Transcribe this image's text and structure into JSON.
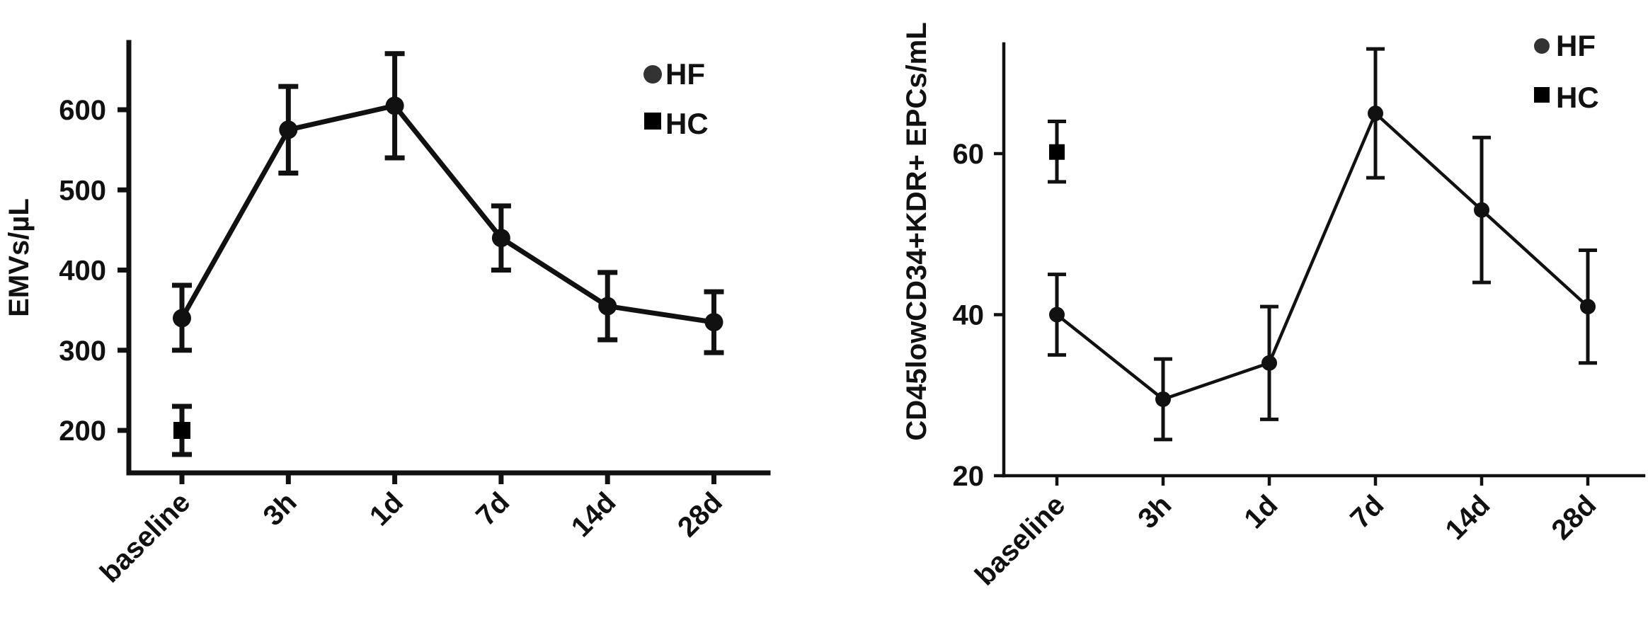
{
  "chart_data": [
    {
      "type": "line",
      "ylabel": "EMVs/µL",
      "xlabel": "",
      "categories": [
        "baseline",
        "3h",
        "1d",
        "7d",
        "14d",
        "28d"
      ],
      "ylim": [
        120,
        700
      ],
      "yticks": [
        200,
        300,
        400,
        500,
        600
      ],
      "yticklabels": [
        "200",
        "300",
        "400",
        "500",
        "600"
      ],
      "legend_position": "top-right",
      "series": [
        {
          "name": "HF",
          "marker": "circle",
          "connected": true,
          "values": [
            340,
            575,
            605,
            440,
            355,
            335
          ],
          "err_low": [
            300,
            521,
            540,
            400,
            313,
            297
          ],
          "err_high": [
            381,
            629,
            670,
            480,
            397,
            373
          ]
        },
        {
          "name": "HC",
          "marker": "square",
          "connected": false,
          "values": [
            200,
            null,
            null,
            null,
            null,
            null
          ],
          "err_low": [
            170,
            null,
            null,
            null,
            null,
            null
          ],
          "err_high": [
            230,
            null,
            null,
            null,
            null,
            null
          ]
        }
      ],
      "colors": {
        "line": "#111111",
        "hf_marker": "#111111",
        "hc_marker": "#000000"
      }
    },
    {
      "type": "line",
      "ylabel": "CD45lowCD34+KDR+ EPCs/mL",
      "xlabel": "",
      "categories": [
        "baseline",
        "3h",
        "1d",
        "7d",
        "14d",
        "28d"
      ],
      "ylim": [
        20,
        74
      ],
      "yticks": [
        20,
        40,
        60
      ],
      "yticklabels": [
        "20",
        "40",
        "60"
      ],
      "legend_position": "top-right",
      "series": [
        {
          "name": "HF",
          "marker": "circle",
          "connected": true,
          "values": [
            40,
            29.5,
            34,
            65,
            53,
            41
          ],
          "err_low": [
            35,
            24.5,
            27,
            57,
            44,
            34
          ],
          "err_high": [
            45,
            34.5,
            41,
            73,
            62,
            48
          ]
        },
        {
          "name": "HC",
          "marker": "square",
          "connected": false,
          "values": [
            60.2,
            null,
            null,
            null,
            null,
            null
          ],
          "err_low": [
            56.5,
            null,
            null,
            null,
            null,
            null
          ],
          "err_high": [
            64,
            null,
            null,
            null,
            null,
            null
          ]
        }
      ],
      "colors": {
        "line": "#111111",
        "hf_marker": "#111111",
        "hc_marker": "#000000"
      }
    }
  ]
}
